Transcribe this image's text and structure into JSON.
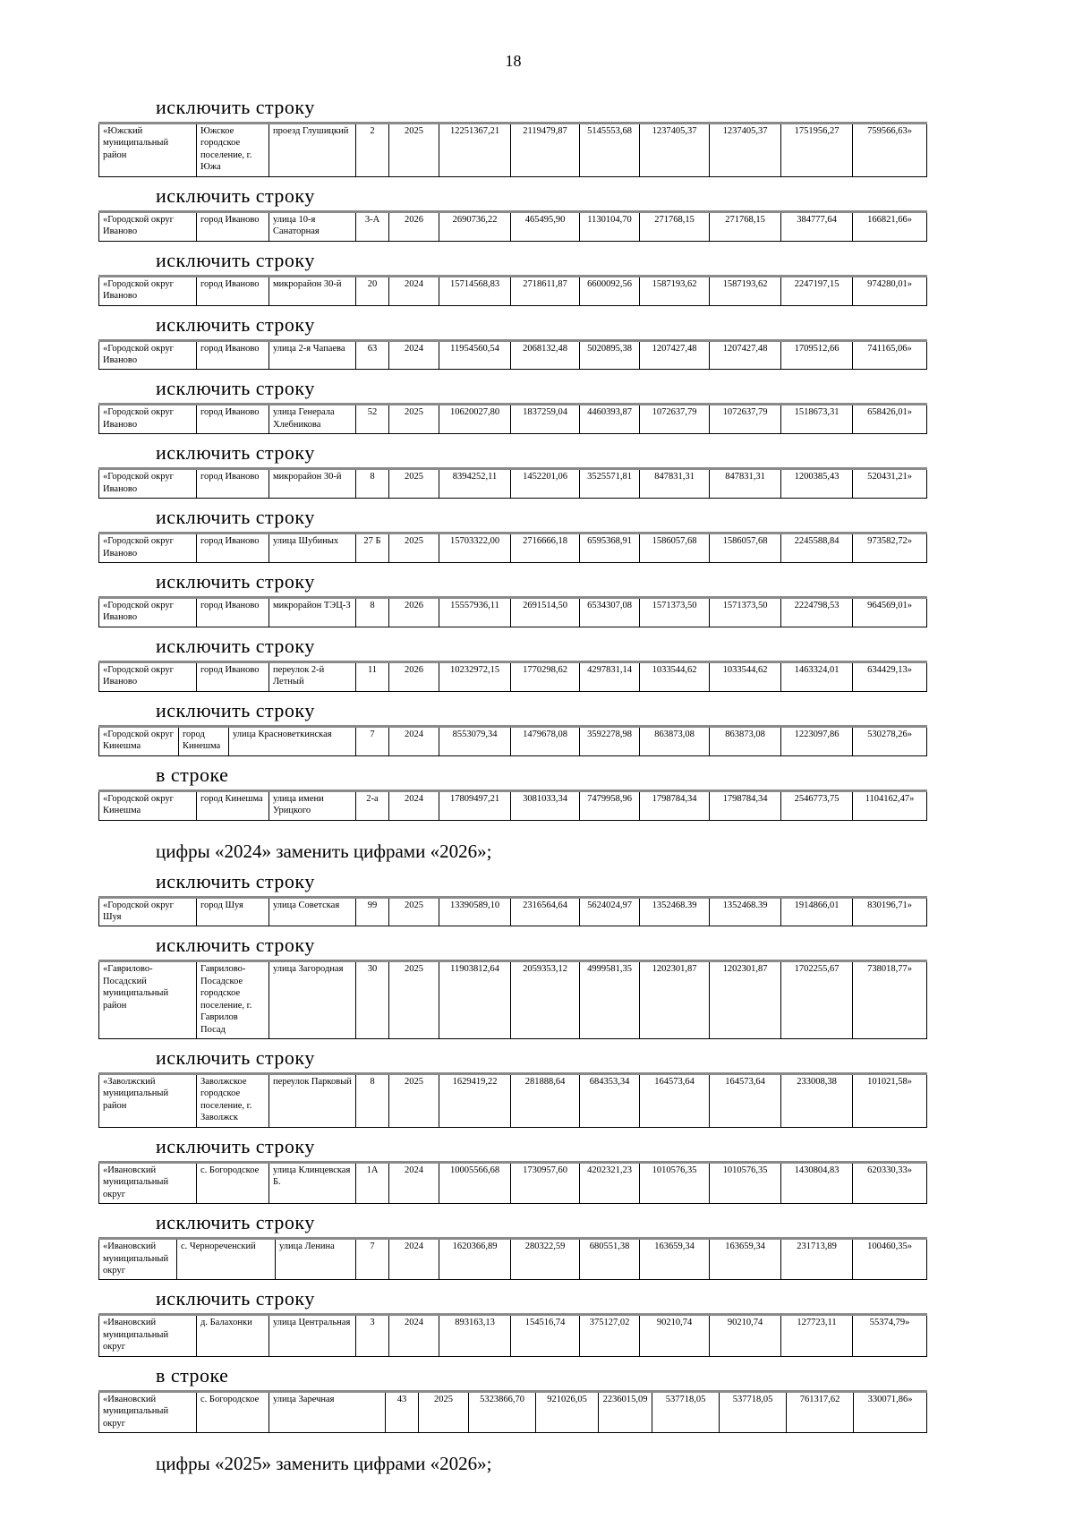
{
  "page": {
    "number": "18"
  },
  "sections": [
    {
      "heading": "исключить строку",
      "cells": [
        "«Южский муниципальный район",
        "Южское городское поселение, г. Южа",
        "проезд Глушицкий",
        "2",
        "2025",
        "12251367,21",
        "2119479,87",
        "5145553,68",
        "1237405,37",
        "1237405,37",
        "1751956,27",
        "759566,63»"
      ]
    },
    {
      "heading": "исключить строку",
      "cells": [
        "«Городской округ Иваново",
        "город Иваново",
        "улица 10-я Санаторная",
        "3-А",
        "2026",
        "2690736,22",
        "465495,90",
        "1130104,70",
        "271768,15",
        "271768,15",
        "384777,64",
        "166821,66»"
      ]
    },
    {
      "heading": "исключить строку",
      "cells": [
        "«Городской округ Иваново",
        "город Иваново",
        "микрорайон 30-й",
        "20",
        "2024",
        "15714568,83",
        "2718611,87",
        "6600092,56",
        "1587193,62",
        "1587193,62",
        "2247197,15",
        "974280,01»"
      ]
    },
    {
      "heading": "исключить строку",
      "cells": [
        "«Городской округ Иваново",
        "город Иваново",
        "улица 2-я Чапаева",
        "63",
        "2024",
        "11954560,54",
        "2068132,48",
        "5020895,38",
        "1207427,48",
        "1207427,48",
        "1709512,66",
        "741165,06»"
      ]
    },
    {
      "heading": "исключить строку",
      "cells": [
        "«Городской округ Иваново",
        "город Иваново",
        "улица Генерала Хлебникова",
        "52",
        "2025",
        "10620027,80",
        "1837259,04",
        "4460393,87",
        "1072637,79",
        "1072637,79",
        "1518673,31",
        "658426,01»"
      ]
    },
    {
      "heading": "исключить строку",
      "cells": [
        "«Городской округ Иваново",
        "город Иваново",
        "микрорайон 30-й",
        "8",
        "2025",
        "8394252,11",
        "1452201,06",
        "3525571,81",
        "847831,31",
        "847831,31",
        "1200385,43",
        "520431,21»"
      ]
    },
    {
      "heading": "исключить строку",
      "cells": [
        "«Городской округ Иваново",
        "город Иваново",
        "улица Шубиных",
        "27 Б",
        "2025",
        "15703322,00",
        "2716666,18",
        "6595368,91",
        "1586057,68",
        "1586057,68",
        "2245588,84",
        "973582,72»"
      ]
    },
    {
      "heading": "исключить строку",
      "cells": [
        "«Городской округ Иваново",
        "город Иваново",
        "микрорайон ТЭЦ-3",
        "8",
        "2026",
        "15557936,11",
        "2691514,50",
        "6534307,08",
        "1571373,50",
        "1571373,50",
        "2224798,53",
        "964569,01»"
      ]
    },
    {
      "heading": "исключить строку",
      "cells": [
        "«Городской округ Иваново",
        "город Иваново",
        "переулок 2-й Летный",
        "11",
        "2026",
        "10232972,15",
        "1770298,62",
        "4297831,14",
        "1033544,62",
        "1033544,62",
        "1463324,01",
        "634429,13»"
      ]
    },
    {
      "heading": "исключить строку",
      "cells": [
        "«Городской округ Кинешма",
        "город Кинешма",
        "улица Красноветкинская",
        "7",
        "2024",
        "8553079,34",
        "1479678,08",
        "3592278,98",
        "863873,08",
        "863873,08",
        "1223097,86",
        "530278,26»"
      ]
    },
    {
      "heading": "в строке",
      "cells": [
        "«Городской округ Кинешма",
        "город Кинешма",
        "улица имени Урицкого",
        "2-а",
        "2024",
        "17809497,21",
        "3081033,34",
        "7479958,96",
        "1798784,34",
        "1798784,34",
        "2546773,75",
        "1104162,47»"
      ],
      "note": "цифры «2024» заменить цифрами «2026»;"
    },
    {
      "heading": "исключить строку",
      "cells": [
        "«Городской округ Шуя",
        "город Шуя",
        "улица Советская",
        "99",
        "2025",
        "13390589,10",
        "2316564,64",
        "5624024,97",
        "1352468.39",
        "1352468.39",
        "1914866,01",
        "830196,71»"
      ]
    },
    {
      "heading": "исключить строку",
      "cells": [
        "«Гаврилово-Посадский муниципальный район",
        "Гаврилово-Посадское городское поселение, г. Гаврилов Посад",
        "улица Загородная",
        "30",
        "2025",
        "11903812,64",
        "2059353,12",
        "4999581,35",
        "1202301,87",
        "1202301,87",
        "1702255,67",
        "738018,77»"
      ]
    },
    {
      "heading": "исключить строку",
      "cells": [
        "«Заволжский муниципальный район",
        "Заволжское городское поселение, г. Заволжск",
        "переулок Парковый",
        "8",
        "2025",
        "1629419,22",
        "281888,64",
        "684353,34",
        "164573,64",
        "164573,64",
        "233008,38",
        "101021,58»"
      ]
    },
    {
      "heading": "исключить строку",
      "cells": [
        "«Ивановский муниципальный округ",
        "с. Богородское",
        "улица Клинцевская Б.",
        "1А",
        "2024",
        "10005566,68",
        "1730957,60",
        "4202321,23",
        "1010576,35",
        "1010576,35",
        "1430804,83",
        "620330,33»"
      ]
    },
    {
      "heading": "исключить строку",
      "cells": [
        "«Ивановский муниципальный округ",
        "с. Чернореченский",
        "улица Ленина",
        "7",
        "2024",
        "1620366,89",
        "280322,59",
        "680551,38",
        "163659,34",
        "163659,34",
        "231713,89",
        "100460,35»"
      ]
    },
    {
      "heading": "исключить строку",
      "cells": [
        "«Ивановский муниципальный округ",
        "д. Балахонки",
        "улица Центральная",
        "3",
        "2024",
        "893163,13",
        "154516,74",
        "375127,02",
        "90210,74",
        "90210,74",
        "127723,11",
        "55374,79»"
      ]
    },
    {
      "heading": "в строке",
      "cells": [
        "«Ивановский муниципальный округ",
        "с. Богородское",
        "улица Заречная",
        "43",
        "2025",
        "5323866,70",
        "921026,05",
        "2236015,09",
        "537718,05",
        "537718,05",
        "761317,62",
        "330071,86»"
      ],
      "note": "цифры «2025» заменить цифрами «2026»;"
    }
  ]
}
